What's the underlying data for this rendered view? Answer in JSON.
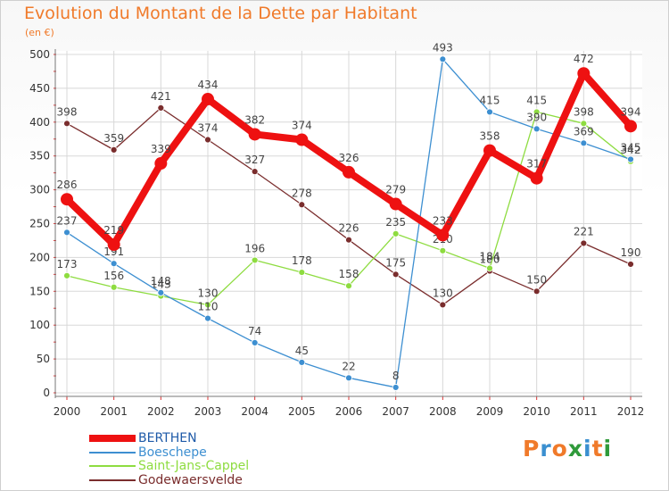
{
  "title": "Evolution du Montant de la Dette par Habitant",
  "unit": "(en €)",
  "logo": {
    "text": "Proxiti",
    "colors": [
      "#f07a2a",
      "#3a8fd0",
      "#f07a2a",
      "#2f9a3a",
      "#3a8fd0",
      "#f07a2a",
      "#2f9a3a"
    ]
  },
  "chart_data": {
    "type": "line",
    "x": [
      "2000",
      "2001",
      "2002",
      "2003",
      "2004",
      "2005",
      "2006",
      "2007",
      "2008",
      "2009",
      "2010",
      "2011",
      "2012"
    ],
    "ylim": [
      0,
      500
    ],
    "yticks": [
      0,
      50,
      100,
      150,
      200,
      250,
      300,
      350,
      400,
      450,
      500
    ],
    "grid": true,
    "legend_position": "bottom-left",
    "series": [
      {
        "name": "BERTHEN",
        "color": "#ee1111",
        "values": [
          286,
          219,
          339,
          434,
          382,
          374,
          326,
          279,
          233,
          358,
          317,
          472,
          394
        ]
      },
      {
        "name": "Boeschepe",
        "color": "#3d8fd1",
        "values": [
          237,
          191,
          148,
          110,
          74,
          45,
          22,
          8,
          493,
          415,
          390,
          369,
          345
        ]
      },
      {
        "name": "Saint-Jans-Cappel",
        "color": "#8edc40",
        "values": [
          173,
          156,
          143,
          130,
          196,
          178,
          158,
          235,
          210,
          184,
          415,
          398,
          342
        ]
      },
      {
        "name": "Godewaersvelde",
        "color": "#7a2d2d",
        "values": [
          398,
          359,
          421,
          374,
          327,
          278,
          226,
          175,
          130,
          180,
          150,
          221,
          190
        ]
      }
    ]
  }
}
